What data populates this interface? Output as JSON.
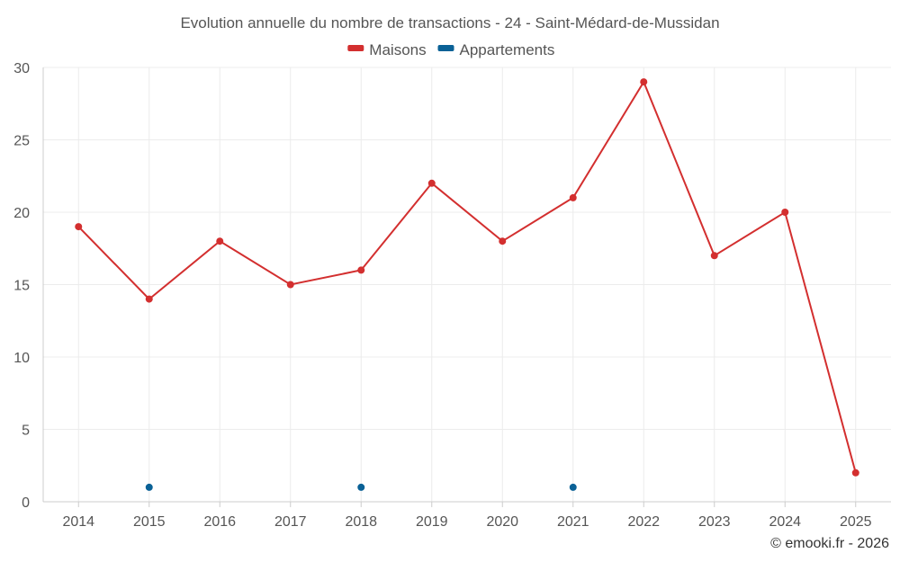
{
  "chart_data": {
    "type": "line",
    "title": "Evolution annuelle du nombre de transactions - 24 - Saint-Médard-de-Mussidan",
    "categories": [
      "2014",
      "2015",
      "2016",
      "2017",
      "2018",
      "2019",
      "2020",
      "2021",
      "2022",
      "2023",
      "2024",
      "2025"
    ],
    "series": [
      {
        "name": "Maisons",
        "color": "#d32f2f",
        "values": [
          19,
          14,
          18,
          15,
          16,
          22,
          18,
          21,
          29,
          17,
          20,
          2
        ]
      },
      {
        "name": "Appartements",
        "color": "#0a6196",
        "values": [
          null,
          1,
          null,
          null,
          1,
          null,
          null,
          1,
          null,
          null,
          null,
          null
        ]
      }
    ],
    "ylim": [
      0,
      30
    ],
    "yticks": [
      0,
      5,
      10,
      15,
      20,
      25,
      30
    ],
    "xlabel": "",
    "ylabel": "",
    "grid": true,
    "legend_position": "top-center"
  },
  "credit": "© emooki.fr - 2026"
}
